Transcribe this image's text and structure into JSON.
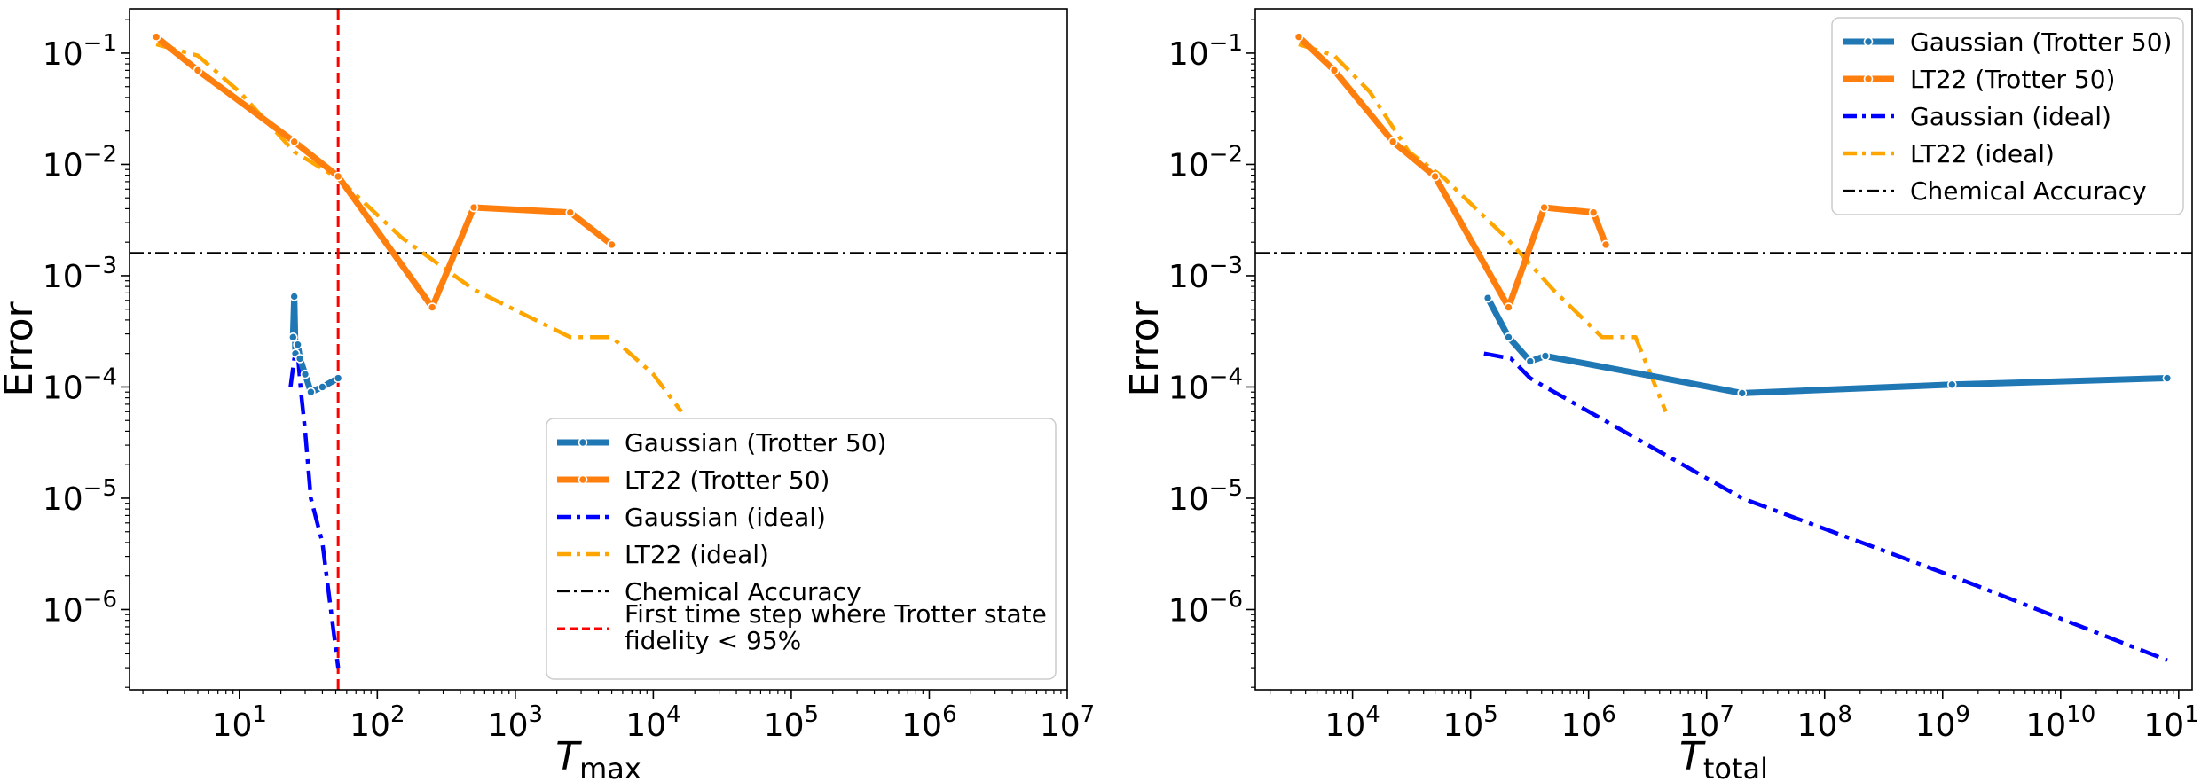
{
  "chart_data": [
    {
      "type": "line",
      "xscale": "log",
      "yscale": "log",
      "xlabel": "T",
      "xlabel_sub": "max",
      "ylabel": "Error",
      "xlim": [
        1.6,
        10000000
      ],
      "ylim": [
        1.9e-07,
        0.25
      ],
      "xticks": [
        {
          "value": 10,
          "base": "10",
          "exp": "1"
        },
        {
          "value": 100,
          "base": "10",
          "exp": "2"
        },
        {
          "value": 1000,
          "base": "10",
          "exp": "3"
        },
        {
          "value": 10000,
          "base": "10",
          "exp": "4"
        },
        {
          "value": 100000,
          "base": "10",
          "exp": "5"
        },
        {
          "value": 1000000,
          "base": "10",
          "exp": "6"
        },
        {
          "value": 10000000,
          "base": "10",
          "exp": "7"
        }
      ],
      "yticks": [
        {
          "value": 0.1,
          "base": "10",
          "exp": "−1"
        },
        {
          "value": 0.01,
          "base": "10",
          "exp": "−2"
        },
        {
          "value": 0.001,
          "base": "10",
          "exp": "−3"
        },
        {
          "value": 0.0001,
          "base": "10",
          "exp": "−4"
        },
        {
          "value": 1e-05,
          "base": "10",
          "exp": "−5"
        },
        {
          "value": 1e-06,
          "base": "10",
          "exp": "−6"
        }
      ],
      "series": [
        {
          "name": "Gaussian (Trotter 50)",
          "color": "#1f77b4",
          "style": "solid-marker",
          "x": [
            24.5,
            25,
            25.5,
            26.5,
            27.5,
            30,
            33,
            40,
            52
          ],
          "y": [
            0.00028,
            0.00065,
            0.0002,
            0.00024,
            0.00018,
            0.00013,
            9e-05,
            0.0001,
            0.00012
          ]
        },
        {
          "name": "LT22 (Trotter 50)",
          "color": "#ff7f0e",
          "style": "solid-marker",
          "x": [
            2.5,
            5,
            25,
            52,
            250,
            500,
            2500,
            5000
          ],
          "y": [
            0.14,
            0.07,
            0.016,
            0.0078,
            0.00052,
            0.0041,
            0.0037,
            0.0019
          ]
        },
        {
          "name": "Gaussian (ideal)",
          "color": "#0000ff",
          "style": "dashdot",
          "x": [
            23.5,
            25,
            26.5,
            28,
            30,
            33,
            40,
            52
          ],
          "y": [
            0.0001,
            0.00018,
            0.0002,
            9e-05,
            4e-05,
            1e-05,
            4e-06,
            3e-07
          ]
        },
        {
          "name": "LT22 (ideal)",
          "color": "#ffa500",
          "style": "dashdot",
          "x": [
            2.5,
            5,
            10,
            25,
            52,
            150,
            500,
            2500,
            5000,
            10000,
            16000
          ],
          "y": [
            0.12,
            0.095,
            0.045,
            0.013,
            0.0075,
            0.0022,
            0.00075,
            0.00028,
            0.00028,
            0.00013,
            6e-05
          ]
        }
      ],
      "hlines": [
        {
          "name": "Chemical Accuracy",
          "y": 0.0016,
          "color": "#000000",
          "style": "dashdot-thin"
        }
      ],
      "vlines": [
        {
          "name": "First time step where Trotter state\n fidelity < 95%",
          "x": 52,
          "color": "#ff0000",
          "style": "dashed"
        }
      ],
      "legend": {
        "placement": "lower-right",
        "entries": [
          {
            "label": "Gaussian (Trotter 50)",
            "color": "#1f77b4",
            "style": "solid-marker"
          },
          {
            "label": "LT22 (Trotter 50)",
            "color": "#ff7f0e",
            "style": "solid-marker"
          },
          {
            "label": "Gaussian (ideal)",
            "color": "#0000ff",
            "style": "dashdot"
          },
          {
            "label": "LT22 (ideal)",
            "color": "#ffa500",
            "style": "dashdot"
          },
          {
            "label": "Chemical Accuracy",
            "color": "#000000",
            "style": "dashdot-thin"
          },
          {
            "label": "First time step where Trotter state",
            "label2": " fidelity < 95%",
            "color": "#ff0000",
            "style": "dashed"
          }
        ]
      }
    },
    {
      "type": "line",
      "xscale": "log",
      "yscale": "log",
      "xlabel": "T",
      "xlabel_sub": "total",
      "ylabel": "Error",
      "xlim": [
        1500,
        130000000000
      ],
      "ylim": [
        1.9e-07,
        0.25
      ],
      "xticks": [
        {
          "value": 10000,
          "base": "10",
          "exp": "4"
        },
        {
          "value": 100000,
          "base": "10",
          "exp": "5"
        },
        {
          "value": 1000000,
          "base": "10",
          "exp": "6"
        },
        {
          "value": 10000000,
          "base": "10",
          "exp": "7"
        },
        {
          "value": 100000000,
          "base": "10",
          "exp": "8"
        },
        {
          "value": 1000000000,
          "base": "10",
          "exp": "9"
        },
        {
          "value": 10000000000,
          "base": "10",
          "exp": "10"
        },
        {
          "value": 100000000000,
          "base": "10",
          "exp": "11"
        }
      ],
      "yticks": [
        {
          "value": 0.1,
          "base": "10",
          "exp": "−1"
        },
        {
          "value": 0.01,
          "base": "10",
          "exp": "−2"
        },
        {
          "value": 0.001,
          "base": "10",
          "exp": "−3"
        },
        {
          "value": 0.0001,
          "base": "10",
          "exp": "−4"
        },
        {
          "value": 1e-05,
          "base": "10",
          "exp": "−5"
        },
        {
          "value": 1e-06,
          "base": "10",
          "exp": "−6"
        }
      ],
      "series": [
        {
          "name": "Gaussian (Trotter 50)",
          "color": "#1f77b4",
          "style": "solid-marker",
          "x": [
            140000,
            210000,
            320000,
            430000,
            20000000,
            1200000000,
            80000000000
          ],
          "y": [
            0.00063,
            0.00028,
            0.00017,
            0.00019,
            8.8e-05,
            0.000105,
            0.00012
          ]
        },
        {
          "name": "LT22 (Trotter 50)",
          "color": "#ff7f0e",
          "style": "solid-marker",
          "x": [
            3500,
            7000,
            22000,
            50000,
            210000,
            420000,
            1100000,
            1400000
          ],
          "y": [
            0.14,
            0.07,
            0.016,
            0.0078,
            0.00052,
            0.0041,
            0.0037,
            0.0019
          ]
        },
        {
          "name": "Gaussian (ideal)",
          "color": "#0000ff",
          "style": "dashdot",
          "x": [
            130000,
            220000,
            320000,
            430000,
            20000000,
            1200000000,
            80000000000
          ],
          "y": [
            0.0002,
            0.00018,
            0.00012,
            0.0001,
            1e-05,
            2e-06,
            3.5e-07
          ]
        },
        {
          "name": "LT22 (ideal)",
          "color": "#ffa500",
          "style": "dashdot",
          "x": [
            3500,
            7000,
            14000,
            30000,
            60000,
            200000,
            500000,
            1300000,
            2500000,
            4500000
          ],
          "y": [
            0.12,
            0.095,
            0.045,
            0.013,
            0.0075,
            0.0022,
            0.00075,
            0.00028,
            0.00028,
            6e-05
          ]
        }
      ],
      "hlines": [
        {
          "name": "Chemical Accuracy",
          "y": 0.0016,
          "color": "#000000",
          "style": "dashdot-thin"
        }
      ],
      "vlines": [],
      "legend": {
        "placement": "upper-right",
        "entries": [
          {
            "label": "Gaussian (Trotter 50)",
            "color": "#1f77b4",
            "style": "solid-marker"
          },
          {
            "label": "LT22 (Trotter 50)",
            "color": "#ff7f0e",
            "style": "solid-marker"
          },
          {
            "label": "Gaussian (ideal)",
            "color": "#0000ff",
            "style": "dashdot"
          },
          {
            "label": "LT22 (ideal)",
            "color": "#ffa500",
            "style": "dashdot"
          },
          {
            "label": "Chemical Accuracy",
            "color": "#000000",
            "style": "dashdot-thin"
          }
        ]
      }
    }
  ]
}
